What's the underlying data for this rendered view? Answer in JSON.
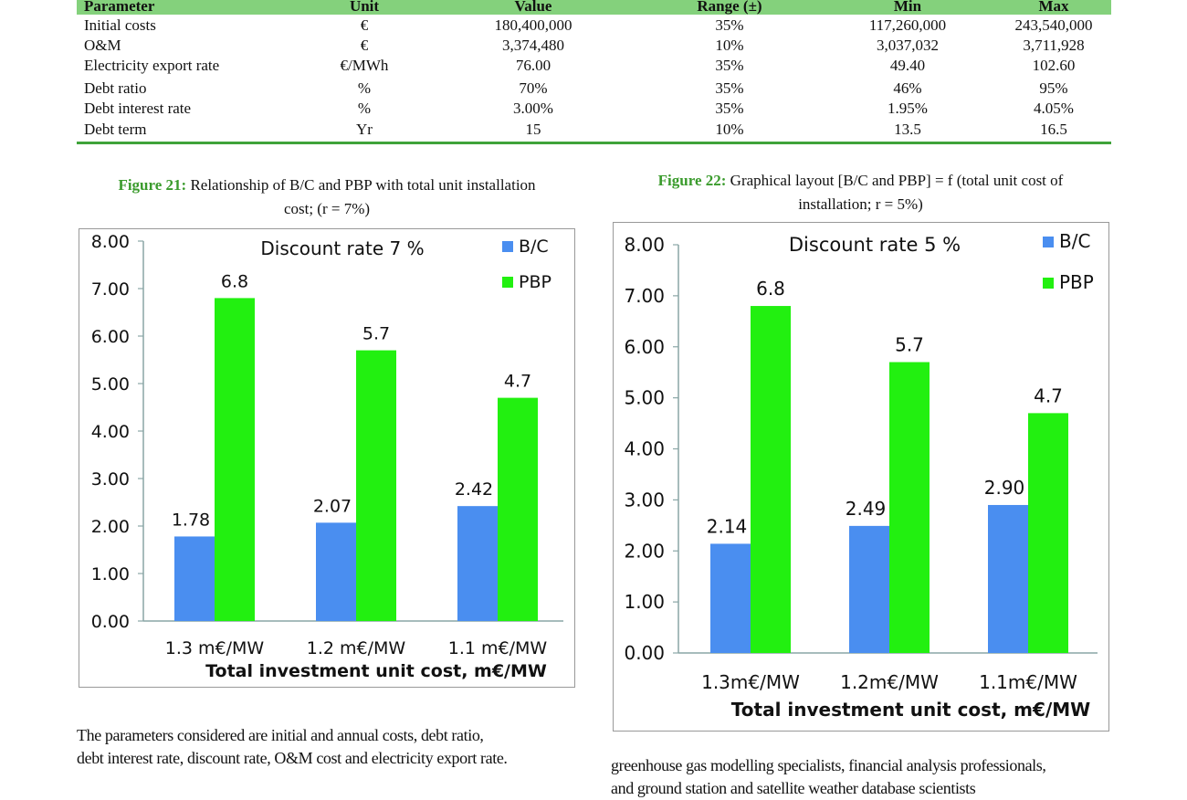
{
  "table": {
    "headers": [
      "Parameter",
      "Unit",
      "Value",
      "Range (±)",
      "Min",
      "Max"
    ],
    "rows": [
      [
        "Initial costs",
        "€",
        "180,400,000",
        "35%",
        "117,260,000",
        "243,540,000"
      ],
      [
        "O&M",
        "€",
        "3,374,480",
        "10%",
        "3,037,032",
        "3,711,928"
      ],
      [
        "Electricity export rate",
        "€/MWh",
        "76.00",
        "35%",
        "49.40",
        "102.60"
      ],
      [
        "Debt ratio",
        "%",
        "70%",
        "35%",
        "46%",
        "95%"
      ],
      [
        "Debt interest rate",
        "%",
        "3.00%",
        "35%",
        "1.95%",
        "4.05%"
      ],
      [
        "Debt term",
        "Yr",
        "15",
        "10%",
        "13.5",
        "16.5"
      ]
    ],
    "header_color": "#84d17c",
    "rule_color": "#3fa33a"
  },
  "figure21": {
    "label": "Figure 21:",
    "caption_line1": " Relationship of B/C and PBP with total unit installation",
    "caption_line2": "cost; (r = 7%)"
  },
  "figure22": {
    "label": "Figure 22:",
    "caption_line1": " Graphical layout [B/C and PBP] = f (total unit cost of",
    "caption_line2": "installation; r = 5%)"
  },
  "chart_data": [
    {
      "type": "bar",
      "title": "Discount rate 7 %",
      "categories": [
        "1.3 m€/MW",
        "1.2 m€/MW",
        "1.1 m€/MW"
      ],
      "series": [
        {
          "name": "B/C",
          "values": [
            1.78,
            2.07,
            2.42
          ],
          "labels": [
            "1.78",
            "2.07",
            "2.42"
          ],
          "color": "#4a8ef0"
        },
        {
          "name": "PBP",
          "values": [
            6.8,
            5.7,
            4.7
          ],
          "labels": [
            "6.8",
            "5.7",
            "4.7"
          ],
          "color": "#22f010"
        }
      ],
      "xlabel": "Total investment unit cost, m€/MW",
      "ylabel": "",
      "ylim": [
        0,
        8
      ],
      "yticks": [
        "0.00",
        "1.00",
        "2.00",
        "3.00",
        "4.00",
        "5.00",
        "6.00",
        "7.00",
        "8.00"
      ],
      "legend": "top-right",
      "grid": false
    },
    {
      "type": "bar",
      "title": "Discount rate 5 %",
      "categories": [
        "1.3m€/MW",
        "1.2m€/MW",
        "1.1m€/MW"
      ],
      "series": [
        {
          "name": "B/C",
          "values": [
            2.14,
            2.49,
            2.9
          ],
          "labels": [
            "2.14",
            "2.49",
            "2.90"
          ],
          "color": "#4a8ef0"
        },
        {
          "name": "PBP",
          "values": [
            6.8,
            5.7,
            4.7
          ],
          "labels": [
            "6.8",
            "5.7",
            "4.7"
          ],
          "color": "#22f010"
        }
      ],
      "xlabel": "Total investment unit cost, m€/MW",
      "ylabel": "",
      "ylim": [
        0,
        8
      ],
      "yticks": [
        "0.00",
        "1.00",
        "2.00",
        "3.00",
        "4.00",
        "5.00",
        "6.00",
        "7.00",
        "8.00"
      ],
      "legend": "top-right",
      "grid": false
    }
  ],
  "paragraph_left": {
    "line1": "The parameters considered are initial and annual costs, debt ratio,",
    "line2": "debt interest rate, discount rate, O&M cost and electricity export rate."
  },
  "paragraph_right": {
    "line1": "greenhouse gas modelling specialists, financial analysis professionals,",
    "line2": "and ground station and satellite weather database scientists"
  }
}
